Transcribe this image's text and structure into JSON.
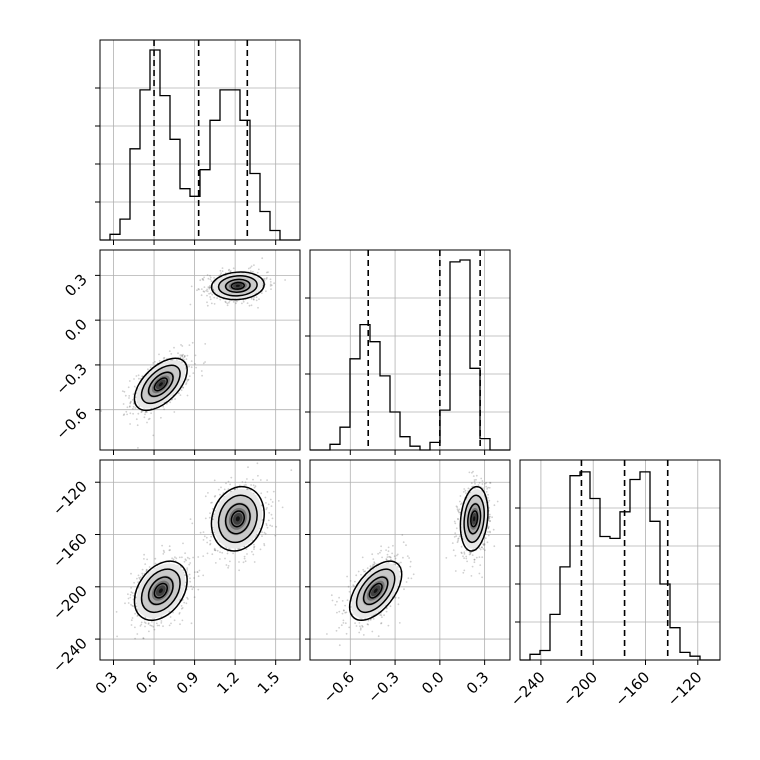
{
  "chart_data": {
    "type": "corner",
    "grid": true,
    "axes_labels": {
      "x0": "",
      "x1": "",
      "x2": ""
    },
    "ranges": {
      "x0": [
        0.2,
        1.68
      ],
      "x1": [
        -0.87,
        0.47
      ],
      "x2": [
        -256,
        -103
      ]
    },
    "ticks": {
      "x0": [
        0.3,
        0.6,
        0.9,
        1.2,
        1.5
      ],
      "x1": [
        -0.6,
        -0.3,
        0.0,
        0.3
      ],
      "x2": [
        -240,
        -200,
        -160,
        -120
      ]
    },
    "tick_labels": {
      "x0": [
        "0.3",
        "0.6",
        "0.9",
        "1.2",
        "1.5"
      ],
      "x1": [
        "−0.6",
        "−0.3",
        "0.0",
        "0.3"
      ],
      "x2": [
        "−240",
        "−200",
        "−160",
        "−120"
      ]
    },
    "quantiles": {
      "x0": [
        0.6,
        0.93,
        1.29
      ],
      "x1": [
        -0.48,
        0.0,
        0.27
      ],
      "x2": [
        -209,
        -176,
        -143
      ]
    },
    "histograms": {
      "x0": {
        "edges": [
          0.2,
          0.274,
          0.348,
          0.422,
          0.496,
          0.57,
          0.644,
          0.718,
          0.792,
          0.866,
          0.94,
          1.014,
          1.088,
          1.162,
          1.236,
          1.31,
          1.384,
          1.458,
          1.532,
          1.606,
          1.68
        ],
        "counts": [
          0.0,
          0.03,
          0.11,
          0.48,
          0.79,
          1.0,
          0.76,
          0.53,
          0.27,
          0.23,
          0.37,
          0.63,
          0.79,
          0.79,
          0.63,
          0.35,
          0.15,
          0.05,
          0.0,
          0.0
        ]
      },
      "x1": {
        "edges": [
          -0.87,
          -0.803,
          -0.736,
          -0.669,
          -0.602,
          -0.535,
          -0.468,
          -0.401,
          -0.334,
          -0.267,
          -0.2,
          -0.133,
          -0.066,
          0.001,
          0.068,
          0.135,
          0.202,
          0.269,
          0.336,
          0.403,
          0.47
        ],
        "counts": [
          0.0,
          0.0,
          0.03,
          0.12,
          0.48,
          0.66,
          0.57,
          0.39,
          0.2,
          0.07,
          0.02,
          0.0,
          0.04,
          0.21,
          0.99,
          1.0,
          0.43,
          0.06,
          0.0,
          0.0
        ]
      },
      "x2": {
        "edges": [
          -256,
          -248.35,
          -240.7,
          -233.05,
          -225.4,
          -217.75,
          -210.1,
          -202.45,
          -194.8,
          -187.15,
          -179.5,
          -171.85,
          -164.2,
          -156.55,
          -148.9,
          -141.25,
          -133.6,
          -125.95,
          -118.3,
          -110.65,
          -103
        ],
        "counts": [
          0.0,
          0.03,
          0.05,
          0.24,
          0.49,
          0.97,
          0.99,
          0.85,
          0.65,
          0.64,
          0.78,
          0.95,
          0.99,
          0.73,
          0.4,
          0.17,
          0.04,
          0.02,
          0.0,
          0.0
        ]
      }
    },
    "clusters": [
      {
        "x0": 0.65,
        "x1": -0.43,
        "x2": -203
      },
      {
        "x0": 1.22,
        "x1": 0.23,
        "x2": -148
      }
    ]
  }
}
